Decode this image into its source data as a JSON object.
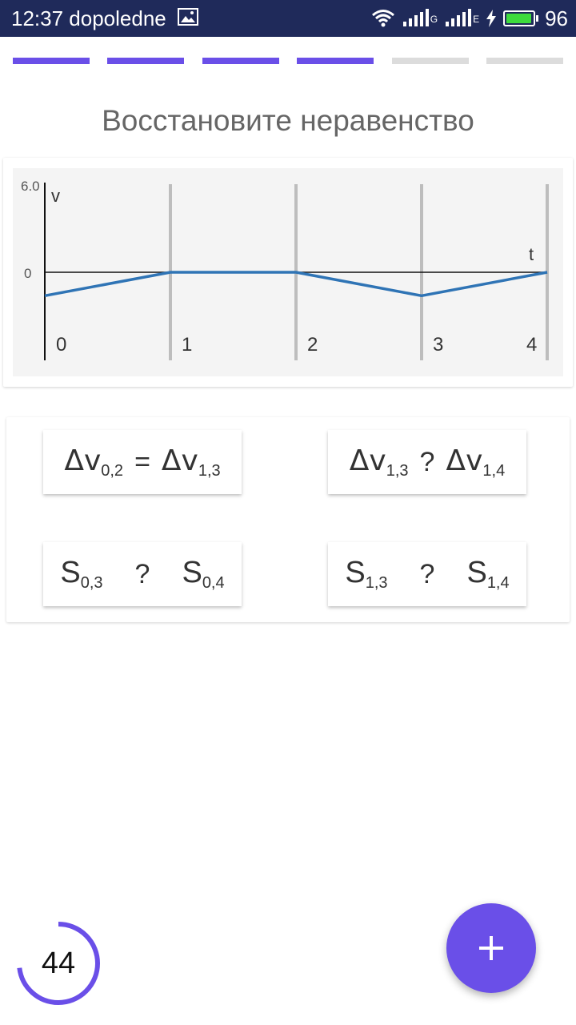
{
  "status_bar": {
    "time": "12:37 dopoledne",
    "network_1": "G",
    "network_2": "E",
    "battery_level": "96",
    "battery_fraction": 0.96,
    "icons": [
      "image-icon",
      "wifi-icon",
      "signal-icon",
      "charging-icon",
      "battery-icon"
    ]
  },
  "progress": {
    "total_steps": 6,
    "completed_steps": 4,
    "accent_color": "#6a4fe8",
    "inactive_color": "#dcdcdc"
  },
  "title": "Восстановите неравенство",
  "chart_data": {
    "type": "line",
    "ylabel": "v",
    "xlabel": "t",
    "y_tick_top": "6.0",
    "y_tick_zero": "0",
    "ylim": [
      -6,
      6
    ],
    "x_ticks": [
      "0",
      "1",
      "2",
      "3",
      "4"
    ],
    "x": [
      0,
      1,
      2,
      3,
      4
    ],
    "series": [
      {
        "values": [
          -1.6,
          0,
          0,
          -1.6,
          0
        ],
        "color": "#2f74b5"
      }
    ],
    "grid": "vertical lines at integer t"
  },
  "cards": [
    {
      "left_sym": "Δv",
      "left_sub": "0,2",
      "op": "=",
      "right_sym": "Δv",
      "right_sub": "1,3"
    },
    {
      "left_sym": "Δv",
      "left_sub": "1,3",
      "op": "?",
      "right_sym": "Δv",
      "right_sub": "1,4"
    },
    {
      "left_sym": "S",
      "left_sub": "0,3",
      "op": "?",
      "right_sym": "S",
      "right_sub": "0,4"
    },
    {
      "left_sym": "S",
      "left_sub": "1,3",
      "op": "?",
      "right_sym": "S",
      "right_sub": "1,4"
    }
  ],
  "timer": {
    "value": "44",
    "fraction_remaining": 0.73,
    "color": "#6a4fe8"
  },
  "fab": {
    "icon": "plus-icon",
    "color": "#6a4fe8"
  }
}
